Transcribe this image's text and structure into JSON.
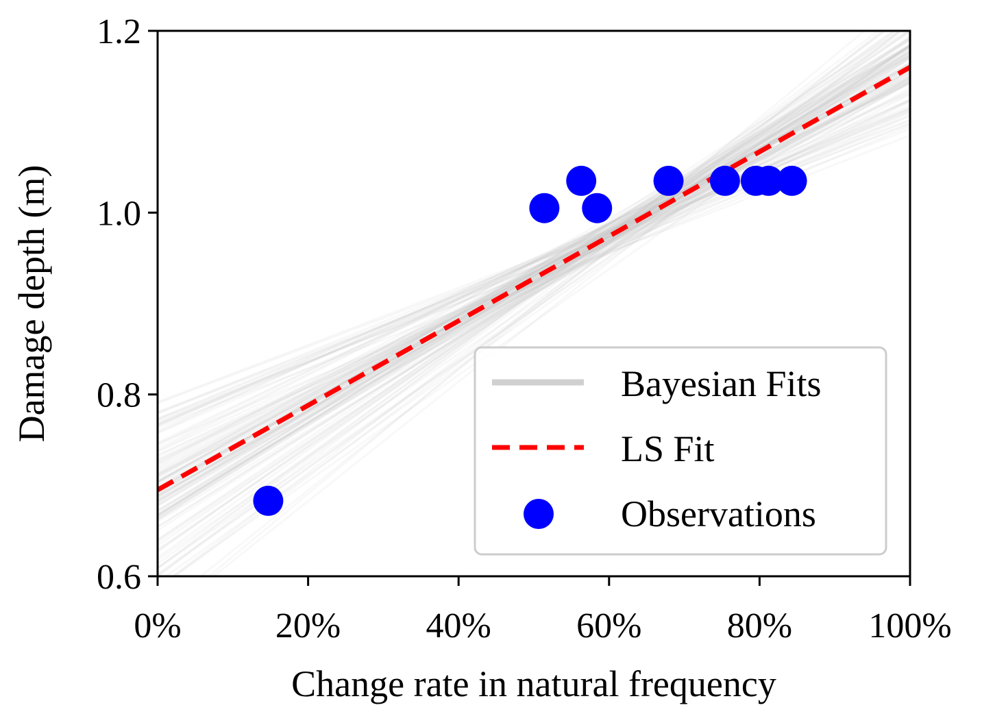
{
  "chart_data": {
    "type": "scatter",
    "title": "",
    "xlabel": "Change rate in natural frequency",
    "ylabel": "Damage depth (m)",
    "xlim": [
      0,
      1
    ],
    "ylim": [
      0.6,
      1.2
    ],
    "x_ticks": [
      {
        "value": 0.0,
        "label": "0%"
      },
      {
        "value": 0.2,
        "label": "20%"
      },
      {
        "value": 0.4,
        "label": "40%"
      },
      {
        "value": 0.6,
        "label": "60%"
      },
      {
        "value": 0.8,
        "label": "80%"
      },
      {
        "value": 1.0,
        "label": "100%"
      }
    ],
    "y_ticks": [
      {
        "value": 0.6,
        "label": "0.6"
      },
      {
        "value": 0.8,
        "label": "0.8"
      },
      {
        "value": 1.0,
        "label": "1.0"
      },
      {
        "value": 1.2,
        "label": "1.2"
      }
    ],
    "grid": false,
    "legend_position": "bottom-right",
    "series": [
      {
        "name": "Bayesian Fits",
        "kind": "line-ensemble",
        "color": "#c8c8c8",
        "center_intercept": 0.69,
        "center_slope": 0.47,
        "count": 120
      },
      {
        "name": "LS Fit",
        "kind": "line",
        "style": "dashed",
        "color": "#ff0000",
        "intercept": 0.695,
        "slope": 0.465,
        "x": [
          0,
          1
        ],
        "y": [
          0.695,
          1.16
        ]
      },
      {
        "name": "Observations",
        "kind": "scatter",
        "color": "#0000ff",
        "points": [
          {
            "x": 0.147,
            "y": 0.683
          },
          {
            "x": 0.514,
            "y": 1.005
          },
          {
            "x": 0.563,
            "y": 1.035
          },
          {
            "x": 0.584,
            "y": 1.005
          },
          {
            "x": 0.679,
            "y": 1.035
          },
          {
            "x": 0.754,
            "y": 1.035
          },
          {
            "x": 0.795,
            "y": 1.035
          },
          {
            "x": 0.812,
            "y": 1.035
          },
          {
            "x": 0.843,
            "y": 1.035
          }
        ]
      }
    ]
  }
}
